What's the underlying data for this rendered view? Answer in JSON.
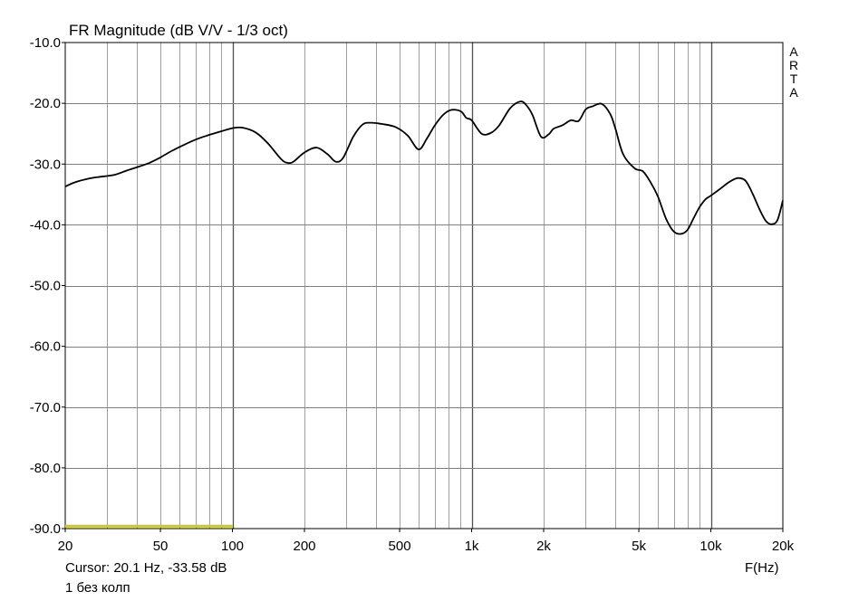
{
  "chart_data": {
    "type": "line",
    "title": "FR Magnitude (dB V/V - 1/3 oct)",
    "xlabel": "F(Hz)",
    "ylabel": "",
    "x_scale": "log",
    "xlim": [
      20,
      20000
    ],
    "ylim": [
      -90,
      -10
    ],
    "grid": true,
    "x_ticks": [
      20,
      50,
      100,
      200,
      500,
      1000,
      2000,
      5000,
      10000,
      20000
    ],
    "x_tick_labels": [
      "20",
      "50",
      "100",
      "200",
      "500",
      "1k",
      "2k",
      "5k",
      "10k",
      "20k"
    ],
    "y_ticks": [
      -10,
      -20,
      -30,
      -40,
      -50,
      -60,
      -70,
      -80,
      -90
    ],
    "y_tick_labels": [
      "-10.0",
      "-20.0",
      "-30.0",
      "-40.0",
      "-50.0",
      "-60.0",
      "-70.0",
      "-80.0",
      "-90.0"
    ],
    "watermark": "ARTA",
    "series": [
      {
        "name": "1 без колп",
        "color": "#000000",
        "x": [
          20,
          22,
          25,
          28,
          32,
          36,
          40,
          45,
          50,
          56,
          63,
          71,
          80,
          90,
          100,
          110,
          125,
          140,
          160,
          170,
          180,
          200,
          225,
          250,
          270,
          290,
          320,
          350,
          380,
          420,
          480,
          540,
          600,
          650,
          700,
          760,
          820,
          900,
          950,
          1000,
          1100,
          1200,
          1300,
          1450,
          1600,
          1700,
          1800,
          1950,
          2100,
          2200,
          2400,
          2600,
          2800,
          3000,
          3200,
          3500,
          3800,
          4000,
          4300,
          4800,
          5200,
          5600,
          6000,
          6500,
          7000,
          7500,
          8000,
          8500,
          9000,
          9500,
          10000,
          11000,
          12000,
          13000,
          14000,
          15000,
          16000,
          17000,
          18000,
          19000,
          20000
        ],
        "values": [
          -33.7,
          -33.0,
          -32.4,
          -32.1,
          -31.8,
          -31.1,
          -30.5,
          -29.8,
          -28.9,
          -27.8,
          -26.8,
          -25.9,
          -25.2,
          -24.6,
          -24.1,
          -24.0,
          -24.8,
          -26.5,
          -29.2,
          -29.8,
          -29.6,
          -28.1,
          -27.3,
          -28.4,
          -29.6,
          -29.0,
          -25.5,
          -23.5,
          -23.2,
          -23.4,
          -23.9,
          -25.3,
          -27.6,
          -25.8,
          -23.7,
          -21.9,
          -21.1,
          -21.3,
          -22.4,
          -22.8,
          -25.0,
          -24.9,
          -23.7,
          -20.8,
          -19.7,
          -20.4,
          -22.0,
          -25.5,
          -25.1,
          -24.2,
          -23.6,
          -22.8,
          -22.9,
          -21.0,
          -20.5,
          -20.1,
          -21.8,
          -24.3,
          -28.4,
          -30.7,
          -31.2,
          -33.0,
          -35.3,
          -39.0,
          -41.1,
          -41.5,
          -40.8,
          -38.8,
          -37.0,
          -35.8,
          -35.2,
          -34.0,
          -32.9,
          -32.3,
          -32.8,
          -35.0,
          -37.5,
          -39.4,
          -39.9,
          -39.2,
          -36.0
        ]
      },
      {
        "name": "",
        "color": "#c8c832",
        "x": [
          20,
          100
        ],
        "values": [
          -89.6,
          -89.6
        ]
      }
    ]
  },
  "footer": {
    "cursor_text": "Cursor: 20.1 Hz, -33.58 dB",
    "trace_label": "1 без колп"
  }
}
